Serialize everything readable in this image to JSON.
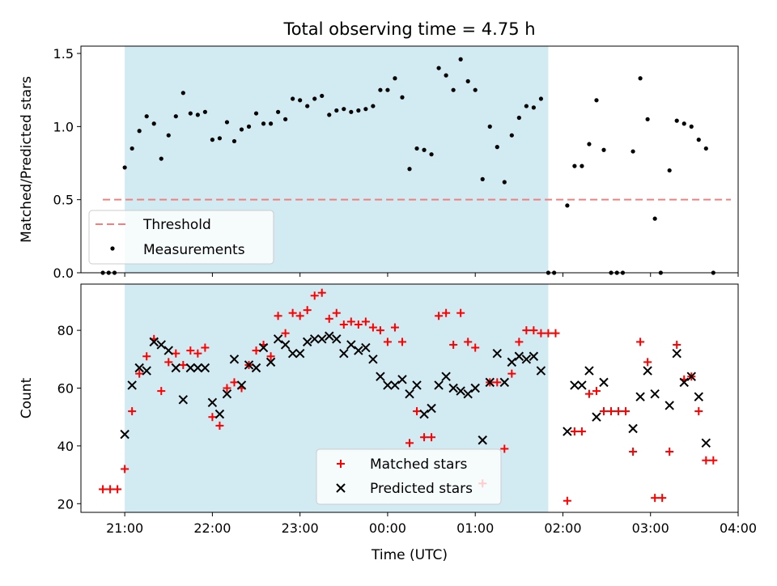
{
  "figure": {
    "title": "Total observing time = 4.75 h",
    "xlabel": "Time (UTC)"
  },
  "chart_data": [
    {
      "type": "scatter",
      "panel": "top",
      "ylabel": "Matched/Predicted stars",
      "xlim": [
        "20:30",
        "04:00"
      ],
      "ylim": [
        0,
        1.55
      ],
      "yticks": [
        0.0,
        0.5,
        1.0,
        1.5
      ],
      "ytick_labels": [
        "0.0",
        "0.5",
        "1.0",
        "1.5"
      ],
      "xticks": [
        "21:00",
        "22:00",
        "23:00",
        "00:00",
        "01:00",
        "02:00",
        "03:00",
        "04:00"
      ],
      "xtick_labels": [],
      "shaded_span": {
        "start": "21:00",
        "end": "01:50",
        "color": "#add8e6"
      },
      "threshold": {
        "name": "Threshold",
        "y": 0.5,
        "x_start": "20:45",
        "x_end": "03:55",
        "color": "#f08080",
        "style": "dashed"
      },
      "legend": {
        "position": "lower-left",
        "entries": [
          "Threshold",
          "Measurements"
        ]
      },
      "series": [
        {
          "name": "Measurements",
          "marker": "dot",
          "color": "#000000",
          "points": [
            [
              "20:45",
              0.0
            ],
            [
              "20:49",
              0.0
            ],
            [
              "20:53",
              0.0
            ],
            [
              "21:00",
              0.72
            ],
            [
              "21:05",
              0.85
            ],
            [
              "21:10",
              0.97
            ],
            [
              "21:15",
              1.07
            ],
            [
              "21:20",
              1.02
            ],
            [
              "21:25",
              0.78
            ],
            [
              "21:30",
              0.94
            ],
            [
              "21:35",
              1.07
            ],
            [
              "21:40",
              1.23
            ],
            [
              "21:45",
              1.09
            ],
            [
              "21:50",
              1.08
            ],
            [
              "21:55",
              1.1
            ],
            [
              "22:00",
              0.91
            ],
            [
              "22:05",
              0.92
            ],
            [
              "22:10",
              1.03
            ],
            [
              "22:15",
              0.9
            ],
            [
              "22:20",
              0.98
            ],
            [
              "22:25",
              1.0
            ],
            [
              "22:30",
              1.09
            ],
            [
              "22:35",
              1.02
            ],
            [
              "22:40",
              1.02
            ],
            [
              "22:45",
              1.1
            ],
            [
              "22:50",
              1.05
            ],
            [
              "22:55",
              1.19
            ],
            [
              "23:00",
              1.18
            ],
            [
              "23:05",
              1.14
            ],
            [
              "23:10",
              1.19
            ],
            [
              "23:15",
              1.21
            ],
            [
              "23:20",
              1.08
            ],
            [
              "23:25",
              1.11
            ],
            [
              "23:30",
              1.12
            ],
            [
              "23:35",
              1.1
            ],
            [
              "23:40",
              1.11
            ],
            [
              "23:45",
              1.12
            ],
            [
              "23:50",
              1.14
            ],
            [
              "23:55",
              1.25
            ],
            [
              "00:00",
              1.25
            ],
            [
              "00:05",
              1.33
            ],
            [
              "00:10",
              1.2
            ],
            [
              "00:15",
              0.71
            ],
            [
              "00:20",
              0.85
            ],
            [
              "00:25",
              0.84
            ],
            [
              "00:30",
              0.81
            ],
            [
              "00:35",
              1.4
            ],
            [
              "00:40",
              1.35
            ],
            [
              "00:45",
              1.25
            ],
            [
              "00:50",
              1.46
            ],
            [
              "00:55",
              1.31
            ],
            [
              "01:00",
              1.25
            ],
            [
              "01:05",
              0.64
            ],
            [
              "01:10",
              1.0
            ],
            [
              "01:15",
              0.86
            ],
            [
              "01:20",
              0.62
            ],
            [
              "01:25",
              0.94
            ],
            [
              "01:30",
              1.06
            ],
            [
              "01:35",
              1.14
            ],
            [
              "01:40",
              1.13
            ],
            [
              "01:45",
              1.19
            ],
            [
              "01:50",
              0.0
            ],
            [
              "01:54",
              0.0
            ],
            [
              "02:03",
              0.46
            ],
            [
              "02:08",
              0.73
            ],
            [
              "02:13",
              0.73
            ],
            [
              "02:18",
              0.88
            ],
            [
              "02:23",
              1.18
            ],
            [
              "02:28",
              0.84
            ],
            [
              "02:33",
              0.0
            ],
            [
              "02:37",
              0.0
            ],
            [
              "02:41",
              0.0
            ],
            [
              "02:48",
              0.83
            ],
            [
              "02:53",
              1.33
            ],
            [
              "02:58",
              1.05
            ],
            [
              "03:03",
              0.37
            ],
            [
              "03:07",
              0.0
            ],
            [
              "03:13",
              0.7
            ],
            [
              "03:18",
              1.04
            ],
            [
              "03:23",
              1.02
            ],
            [
              "03:28",
              1.0
            ],
            [
              "03:33",
              0.91
            ],
            [
              "03:38",
              0.85
            ],
            [
              "03:43",
              0.0
            ]
          ]
        }
      ]
    },
    {
      "type": "scatter",
      "panel": "bottom",
      "ylabel": "Count",
      "xlim": [
        "20:30",
        "04:00"
      ],
      "ylim": [
        17,
        96
      ],
      "yticks": [
        20,
        40,
        60,
        80
      ],
      "ytick_labels": [
        "20",
        "40",
        "60",
        "80"
      ],
      "xticks": [
        "21:00",
        "22:00",
        "23:00",
        "00:00",
        "01:00",
        "02:00",
        "03:00",
        "04:00"
      ],
      "xtick_labels": [
        "21:00",
        "22:00",
        "23:00",
        "00:00",
        "01:00",
        "02:00",
        "03:00",
        "04:00"
      ],
      "shaded_span": {
        "start": "21:00",
        "end": "01:50",
        "color": "#add8e6"
      },
      "legend": {
        "position": "lower-center",
        "entries": [
          "Matched stars",
          "Predicted stars"
        ]
      },
      "series": [
        {
          "name": "Matched stars",
          "marker": "plus",
          "color": "#ff0000",
          "points": [
            [
              "20:45",
              25
            ],
            [
              "20:50",
              25
            ],
            [
              "20:55",
              25
            ],
            [
              "21:00",
              32
            ],
            [
              "21:05",
              52
            ],
            [
              "21:10",
              65
            ],
            [
              "21:15",
              71
            ],
            [
              "21:20",
              77
            ],
            [
              "21:25",
              59
            ],
            [
              "21:30",
              69
            ],
            [
              "21:35",
              72
            ],
            [
              "21:40",
              68
            ],
            [
              "21:45",
              73
            ],
            [
              "21:50",
              72
            ],
            [
              "21:55",
              74
            ],
            [
              "22:00",
              50
            ],
            [
              "22:05",
              47
            ],
            [
              "22:10",
              60
            ],
            [
              "22:15",
              62
            ],
            [
              "22:20",
              60
            ],
            [
              "22:25",
              68
            ],
            [
              "22:30",
              73
            ],
            [
              "22:35",
              75
            ],
            [
              "22:40",
              71
            ],
            [
              "22:45",
              85
            ],
            [
              "22:50",
              79
            ],
            [
              "22:55",
              86
            ],
            [
              "23:00",
              85
            ],
            [
              "23:05",
              87
            ],
            [
              "23:10",
              92
            ],
            [
              "23:15",
              93
            ],
            [
              "23:20",
              84
            ],
            [
              "23:25",
              86
            ],
            [
              "23:30",
              82
            ],
            [
              "23:35",
              83
            ],
            [
              "23:40",
              82
            ],
            [
              "23:45",
              83
            ],
            [
              "23:50",
              81
            ],
            [
              "23:55",
              80
            ],
            [
              "00:00",
              76
            ],
            [
              "00:05",
              81
            ],
            [
              "00:10",
              76
            ],
            [
              "00:15",
              41
            ],
            [
              "00:20",
              52
            ],
            [
              "00:25",
              43
            ],
            [
              "00:30",
              43
            ],
            [
              "00:35",
              85
            ],
            [
              "00:40",
              86
            ],
            [
              "00:45",
              75
            ],
            [
              "00:50",
              86
            ],
            [
              "00:55",
              76
            ],
            [
              "01:00",
              74
            ],
            [
              "01:05",
              27
            ],
            [
              "01:10",
              62
            ],
            [
              "01:15",
              62
            ],
            [
              "01:20",
              39
            ],
            [
              "01:25",
              65
            ],
            [
              "01:30",
              76
            ],
            [
              "01:35",
              80
            ],
            [
              "01:40",
              80
            ],
            [
              "01:45",
              79
            ],
            [
              "01:50",
              79
            ],
            [
              "01:55",
              79
            ],
            [
              "02:03",
              21
            ],
            [
              "02:08",
              45
            ],
            [
              "02:13",
              45
            ],
            [
              "02:18",
              58
            ],
            [
              "02:23",
              59
            ],
            [
              "02:28",
              52
            ],
            [
              "02:33",
              52
            ],
            [
              "02:38",
              52
            ],
            [
              "02:43",
              52
            ],
            [
              "02:48",
              38
            ],
            [
              "02:53",
              76
            ],
            [
              "02:58",
              69
            ],
            [
              "03:03",
              22
            ],
            [
              "03:08",
              22
            ],
            [
              "03:13",
              38
            ],
            [
              "03:18",
              75
            ],
            [
              "03:23",
              63
            ],
            [
              "03:28",
              64
            ],
            [
              "03:33",
              52
            ],
            [
              "03:38",
              35
            ],
            [
              "03:43",
              35
            ]
          ]
        },
        {
          "name": "Predicted stars",
          "marker": "x",
          "color": "#000000",
          "points": [
            [
              "21:00",
              44
            ],
            [
              "21:05",
              61
            ],
            [
              "21:10",
              67
            ],
            [
              "21:15",
              66
            ],
            [
              "21:20",
              76
            ],
            [
              "21:25",
              75
            ],
            [
              "21:30",
              73
            ],
            [
              "21:35",
              67
            ],
            [
              "21:40",
              56
            ],
            [
              "21:45",
              67
            ],
            [
              "21:50",
              67
            ],
            [
              "21:55",
              67
            ],
            [
              "22:00",
              55
            ],
            [
              "22:05",
              51
            ],
            [
              "22:10",
              58
            ],
            [
              "22:15",
              70
            ],
            [
              "22:20",
              61
            ],
            [
              "22:25",
              68
            ],
            [
              "22:30",
              67
            ],
            [
              "22:35",
              74
            ],
            [
              "22:40",
              69
            ],
            [
              "22:45",
              77
            ],
            [
              "22:50",
              75
            ],
            [
              "22:55",
              72
            ],
            [
              "23:00",
              72
            ],
            [
              "23:05",
              76
            ],
            [
              "23:10",
              77
            ],
            [
              "23:15",
              77
            ],
            [
              "23:20",
              78
            ],
            [
              "23:25",
              77
            ],
            [
              "23:30",
              72
            ],
            [
              "23:35",
              75
            ],
            [
              "23:40",
              73
            ],
            [
              "23:45",
              74
            ],
            [
              "23:50",
              70
            ],
            [
              "23:55",
              64
            ],
            [
              "00:00",
              61
            ],
            [
              "00:05",
              61
            ],
            [
              "00:10",
              63
            ],
            [
              "00:15",
              58
            ],
            [
              "00:20",
              61
            ],
            [
              "00:25",
              51
            ],
            [
              "00:30",
              53
            ],
            [
              "00:35",
              61
            ],
            [
              "00:40",
              64
            ],
            [
              "00:45",
              60
            ],
            [
              "00:50",
              59
            ],
            [
              "00:55",
              58
            ],
            [
              "01:00",
              60
            ],
            [
              "01:05",
              42
            ],
            [
              "01:10",
              62
            ],
            [
              "01:15",
              72
            ],
            [
              "01:20",
              62
            ],
            [
              "01:25",
              69
            ],
            [
              "01:30",
              71
            ],
            [
              "01:35",
              70
            ],
            [
              "01:40",
              71
            ],
            [
              "01:45",
              66
            ],
            [
              "02:03",
              45
            ],
            [
              "02:08",
              61
            ],
            [
              "02:13",
              61
            ],
            [
              "02:18",
              66
            ],
            [
              "02:23",
              50
            ],
            [
              "02:28",
              62
            ],
            [
              "02:48",
              46
            ],
            [
              "02:53",
              57
            ],
            [
              "02:58",
              66
            ],
            [
              "03:03",
              58
            ],
            [
              "03:13",
              54
            ],
            [
              "03:18",
              72
            ],
            [
              "03:23",
              62
            ],
            [
              "03:28",
              64
            ],
            [
              "03:33",
              57
            ],
            [
              "03:38",
              41
            ]
          ]
        }
      ]
    }
  ]
}
